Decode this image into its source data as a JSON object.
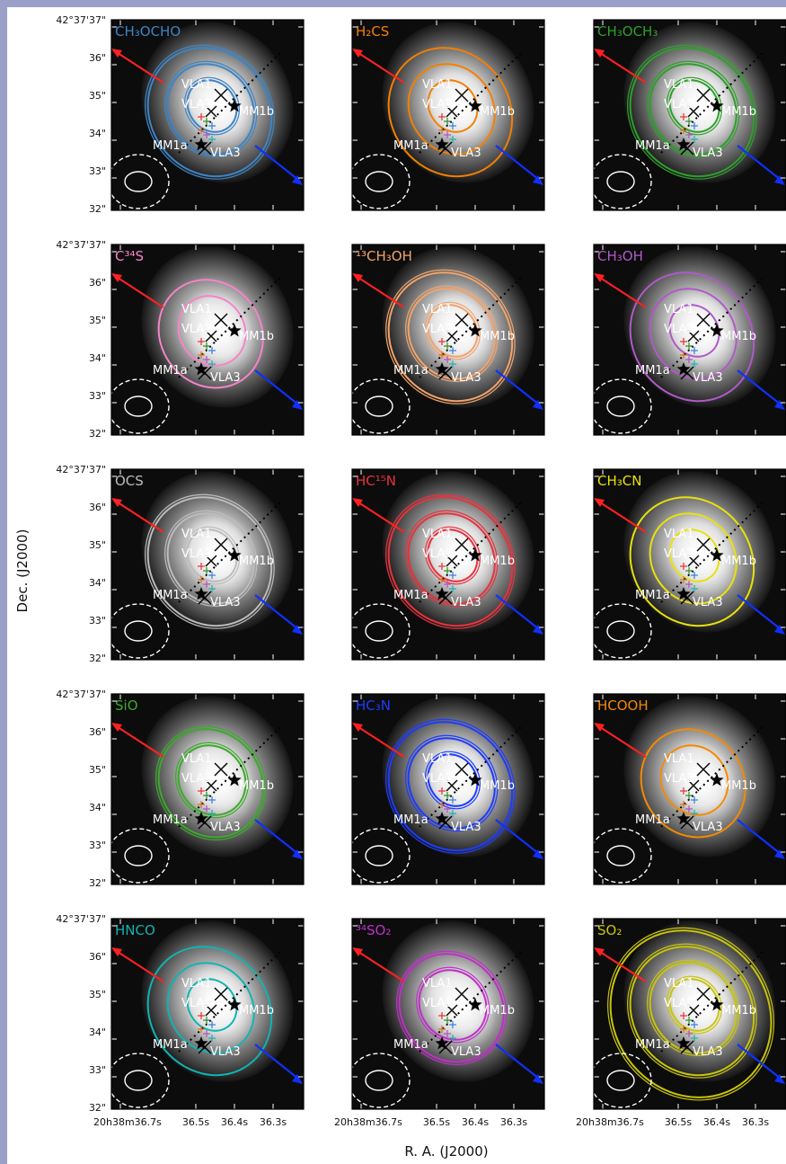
{
  "xlabel": "R. A. (J2000)",
  "ylabel": "Dec. (J2000)",
  "dec_ticks": [
    "42°37'37\"",
    "36\"",
    "35\"",
    "34\"",
    "33\"",
    "32\""
  ],
  "ra_ticks": [
    "20h38m36.7s",
    "36.5s",
    "36.4s",
    "36.3s"
  ],
  "source_labels": {
    "vla1": "VLA1",
    "vla2": "VLA2",
    "vla3": "VLA3",
    "mm1a": "MM1a",
    "mm1b": "MM1b"
  },
  "chart_data": [
    {
      "type": "contour",
      "molecule": "CH₃OCHO",
      "color": "#3d85c6",
      "levels": 3,
      "double": true
    },
    {
      "type": "contour",
      "molecule": "H₂CS",
      "color": "#f57f00",
      "levels": 3,
      "double": false
    },
    {
      "type": "contour",
      "molecule": "CH₃OCH₃",
      "color": "#2ea02c",
      "levels": 3,
      "double": true
    },
    {
      "type": "contour",
      "molecule": "C³⁴S",
      "color": "#f584c8",
      "levels": 2,
      "double": false
    },
    {
      "type": "contour",
      "molecule": "¹³CH₃OH",
      "color": "#f2a36b",
      "levels": 3,
      "double": true
    },
    {
      "type": "contour",
      "molecule": "CH₃OH",
      "color": "#b05ac8",
      "levels": 3,
      "double": false
    },
    {
      "type": "contour",
      "molecule": "OCS",
      "color": "#bcbcbc",
      "levels": 3,
      "double": true
    },
    {
      "type": "contour",
      "molecule": "HC¹⁵N",
      "color": "#e8323c",
      "levels": 3,
      "double": true
    },
    {
      "type": "contour",
      "molecule": "CH₃CN",
      "color": "#e8e20a",
      "levels": 3,
      "double": false
    },
    {
      "type": "contour",
      "molecule": "SiO",
      "color": "#3caa2c",
      "levels": 2,
      "double": true
    },
    {
      "type": "contour",
      "molecule": "HC₃N",
      "color": "#1e3cff",
      "levels": 3,
      "double": true
    },
    {
      "type": "contour",
      "molecule": "HCOOH",
      "color": "#f58a00",
      "levels": 2,
      "double": false
    },
    {
      "type": "contour",
      "molecule": "HNCO",
      "color": "#10b4b4",
      "levels": 3,
      "double": false
    },
    {
      "type": "contour",
      "molecule": "³⁴SO₂",
      "color": "#c030c8",
      "levels": 2,
      "double": true
    },
    {
      "type": "contour",
      "molecule": "SO₂",
      "color": "#c8c40a",
      "levels": 4,
      "double": true
    }
  ]
}
